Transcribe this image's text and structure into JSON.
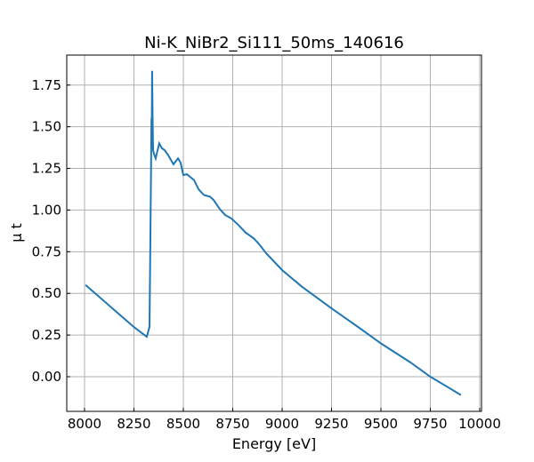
{
  "chart_data": {
    "type": "line",
    "title": "Ni-K_NiBr2_Si111_50ms_140616",
    "xlabel": "Energy [eV]",
    "ylabel": "μ t",
    "xlim": [
      7910,
      10009
    ],
    "ylim": [
      -0.208,
      1.93
    ],
    "xticks": [
      8000,
      8250,
      8500,
      8750,
      9000,
      9250,
      9500,
      9750,
      10000
    ],
    "yticks": [
      0.0,
      0.25,
      0.5,
      0.75,
      1.0,
      1.25,
      1.5,
      1.75
    ],
    "xtick_labels": [
      "8000",
      "8250",
      "8500",
      "8750",
      "9000",
      "9250",
      "9500",
      "9750",
      "10000"
    ],
    "ytick_labels": [
      "0.00",
      "0.25",
      "0.50",
      "0.75",
      "1.00",
      "1.25",
      "1.50",
      "1.75"
    ],
    "grid": true,
    "series": [
      {
        "name": "mu_t",
        "color": "#1f77b4",
        "x": [
          8005,
          8248,
          8315,
          8329,
          8334,
          8337,
          8339,
          8340,
          8342,
          8345,
          8347,
          8351,
          8360,
          8369,
          8378,
          8392,
          8405,
          8423,
          8450,
          8473,
          8486,
          8500,
          8518,
          8554,
          8577,
          8604,
          8635,
          8653,
          8685,
          8712,
          8743,
          8779,
          8815,
          8856,
          8880,
          8920,
          9000,
          9100,
          9250,
          9400,
          9500,
          9650,
          9750,
          9905
        ],
        "y": [
          0.55,
          0.3,
          0.24,
          0.3,
          0.9,
          1.3,
          1.55,
          1.45,
          1.835,
          1.5,
          1.36,
          1.34,
          1.31,
          1.355,
          1.4,
          1.37,
          1.36,
          1.33,
          1.275,
          1.31,
          1.285,
          1.21,
          1.215,
          1.18,
          1.125,
          1.09,
          1.08,
          1.06,
          1.005,
          0.97,
          0.95,
          0.91,
          0.865,
          0.83,
          0.8,
          0.74,
          0.64,
          0.54,
          0.41,
          0.285,
          0.2,
          0.085,
          0.0,
          -0.11
        ]
      }
    ]
  }
}
